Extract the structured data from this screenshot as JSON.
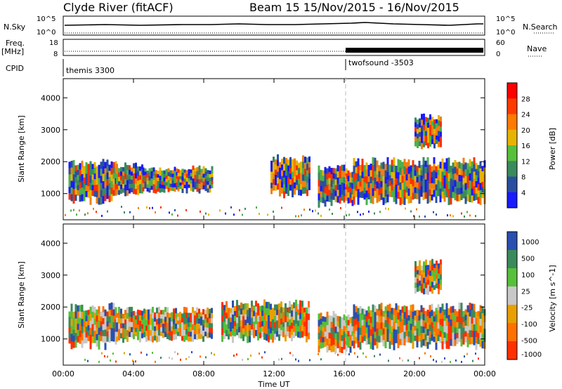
{
  "header": {
    "title_left": "Clyde River (fitACF)",
    "title_right": "Beam 15  15/Nov/2015 - 16/Nov/2015"
  },
  "top_panels": {
    "nsky_label": "N.Sky",
    "nsky_ticks": [
      "10^5",
      "10^0"
    ],
    "nsearch_label": "N.Search",
    "nsearch_ticks": [
      "10^5",
      "10^0"
    ],
    "freq_label": "Freq.",
    "freq_unit": "[MHz]",
    "freq_ticks": [
      "18",
      "8"
    ],
    "nave_label": "Nave",
    "nave_ticks": [
      "60",
      "0"
    ],
    "cpid_label": "CPID",
    "cpid_segments": [
      {
        "label": "themis 3300",
        "start_hour": 0
      },
      {
        "label": "twofsound -3503",
        "start_hour": 16
      }
    ]
  },
  "colors": {
    "power": [
      "#1a1aff",
      "#2a4fa0",
      "#3a8a5c",
      "#4db04a",
      "#e6b400",
      "#f08010",
      "#ff3000"
    ],
    "velocity": [
      "#2a4fb0",
      "#3a8a5c",
      "#56c03a",
      "#c8c8c8",
      "#e8a000",
      "#ff7000",
      "#ff3000"
    ]
  },
  "chart_data": [
    {
      "type": "heatmap",
      "title": "Power",
      "xlabel": "",
      "ylabel": "Slant Range [km]",
      "xlim": [
        0,
        24
      ],
      "ylim": [
        180,
        4600
      ],
      "y_ticks": [
        "1000",
        "2000",
        "3000",
        "4000"
      ],
      "x_ticks": [
        "00:00",
        "04:00",
        "08:00",
        "12:00",
        "16:00",
        "20:00",
        "00:00"
      ],
      "colorbar": {
        "label": "Power [dB]",
        "ticks": [
          "28",
          "24",
          "20",
          "16",
          "12",
          "8",
          "4"
        ],
        "range": [
          0,
          30
        ]
      },
      "echo_regions": [
        {
          "x0": 0.3,
          "x1": 3.0,
          "y0": 800,
          "y1": 2000
        },
        {
          "x0": 3.0,
          "x1": 4.5,
          "y0": 1000,
          "y1": 1900
        },
        {
          "x0": 4.5,
          "x1": 6.5,
          "y0": 1100,
          "y1": 1800
        },
        {
          "x0": 6.5,
          "x1": 8.5,
          "y0": 1100,
          "y1": 1800
        },
        {
          "x0": 11.8,
          "x1": 14.0,
          "y0": 1000,
          "y1": 2100
        },
        {
          "x0": 14.5,
          "x1": 16.5,
          "y0": 700,
          "y1": 1800
        },
        {
          "x0": 16.5,
          "x1": 24.0,
          "y0": 800,
          "y1": 2000
        },
        {
          "x0": 20.0,
          "x1": 21.5,
          "y0": 2500,
          "y1": 3400
        }
      ]
    },
    {
      "type": "heatmap",
      "title": "Velocity",
      "xlabel": "Time UT",
      "ylabel": "Slant Range [km]",
      "xlim": [
        0,
        24
      ],
      "ylim": [
        180,
        4600
      ],
      "y_ticks": [
        "1000",
        "2000",
        "3000",
        "4000"
      ],
      "x_ticks": [
        "00:00",
        "04:00",
        "08:00",
        "12:00",
        "16:00",
        "20:00",
        "00:00"
      ],
      "colorbar": {
        "label": "Velocity [m s^-1]",
        "ticks": [
          "1000",
          "500",
          "100",
          "25",
          "-25",
          "-100",
          "-500",
          "-1000"
        ]
      },
      "echo_regions": [
        {
          "x0": 0.3,
          "x1": 3.0,
          "y0": 800,
          "y1": 2000
        },
        {
          "x0": 3.0,
          "x1": 8.5,
          "y0": 1000,
          "y1": 1900
        },
        {
          "x0": 9.0,
          "x1": 14.0,
          "y0": 1000,
          "y1": 2100
        },
        {
          "x0": 14.5,
          "x1": 16.5,
          "y0": 700,
          "y1": 1800
        },
        {
          "x0": 16.5,
          "x1": 24.0,
          "y0": 800,
          "y1": 2000
        },
        {
          "x0": 20.0,
          "x1": 21.5,
          "y0": 2500,
          "y1": 3400
        }
      ]
    }
  ]
}
